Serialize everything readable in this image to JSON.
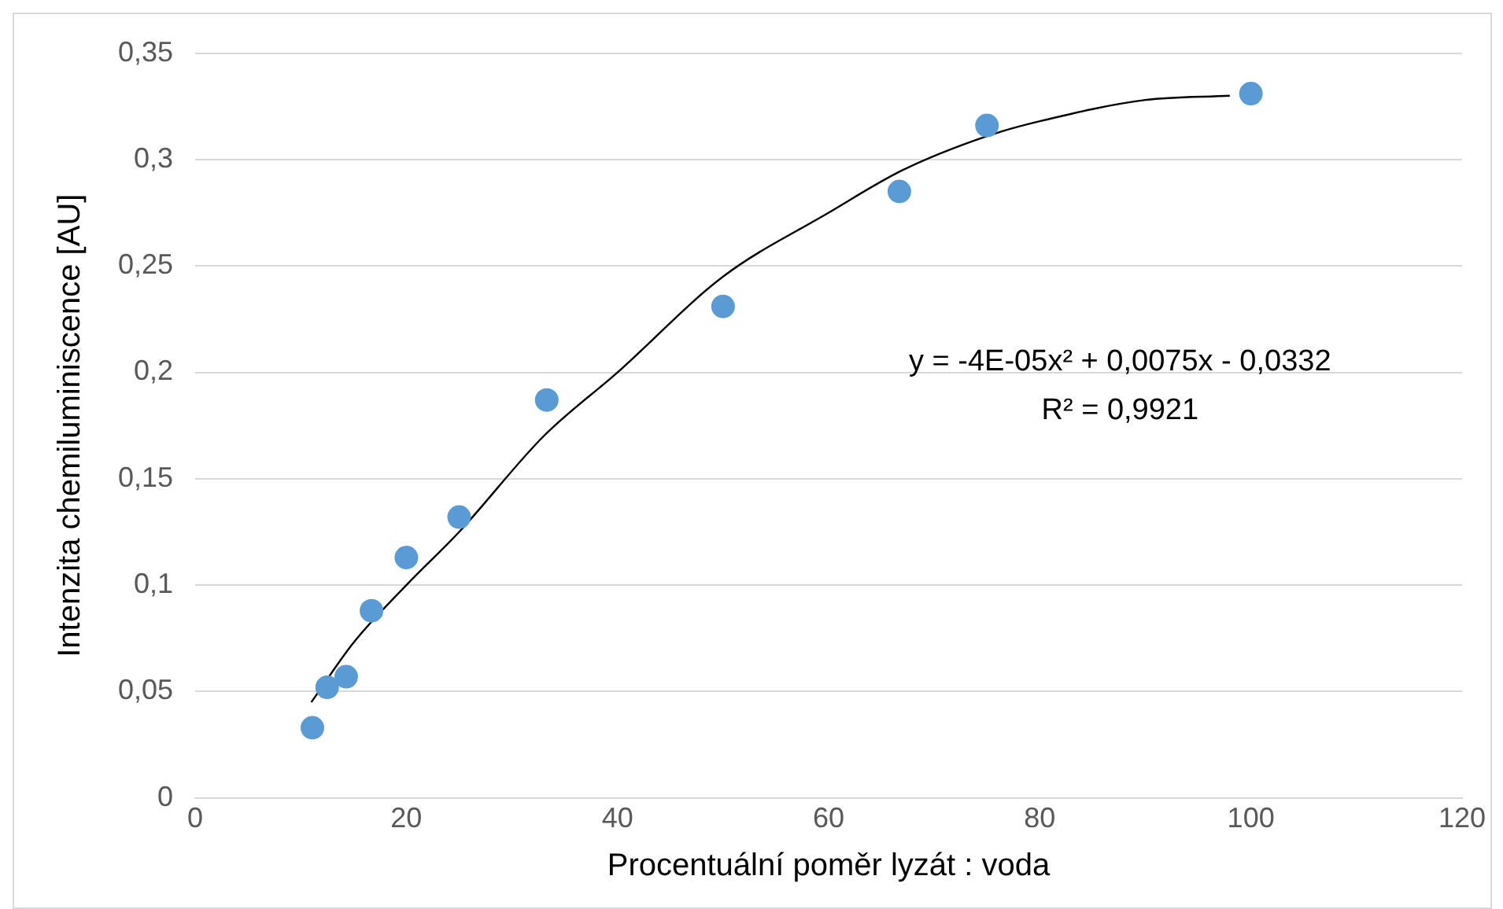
{
  "chart_data": {
    "type": "scatter",
    "xlabel": "Procentuální poměr lyzát : voda",
    "ylabel": "Intenzita chemiluminiscence [AU]",
    "series": [
      {
        "color": "#5b9bd5",
        "x": [
          11.1,
          12.5,
          14.3,
          16.7,
          20,
          25,
          33.3,
          50,
          66.7,
          75,
          100
        ],
        "values": [
          0.033,
          0.052,
          0.057,
          0.088,
          0.113,
          0.132,
          0.187,
          0.231,
          0.285,
          0.316,
          0.331
        ]
      },
      {
        "type": "line",
        "color": "#000000",
        "marker": "none",
        "x": [
          11,
          15,
          20,
          25,
          33,
          40,
          50,
          60,
          67,
          75,
          80,
          90,
          98
        ],
        "values": [
          0.045,
          0.073,
          0.1,
          0.125,
          0.17,
          0.2,
          0.245,
          0.275,
          0.295,
          0.311,
          0.318,
          0.328,
          0.33
        ]
      }
    ],
    "annotations": [
      "y = -4E-05x² + 0,0075x - 0,0332",
      "R² = 0,9921"
    ],
    "xlim": [
      0,
      120
    ],
    "xticks": [
      0,
      20,
      40,
      60,
      80,
      100,
      120
    ],
    "ylim": [
      0,
      0.35
    ],
    "yticks": [
      {
        "value": 0,
        "label": "0"
      },
      {
        "value": 0.05,
        "label": "0,05"
      },
      {
        "value": 0.1,
        "label": "0,1"
      },
      {
        "value": 0.15,
        "label": "0,15"
      },
      {
        "value": 0.2,
        "label": "0,2"
      },
      {
        "value": 0.25,
        "label": "0,25"
      },
      {
        "value": 0.3,
        "label": "0,3"
      },
      {
        "value": 0.35,
        "label": "0,35"
      }
    ],
    "grid": "y",
    "legend": false,
    "marker": "circle"
  }
}
